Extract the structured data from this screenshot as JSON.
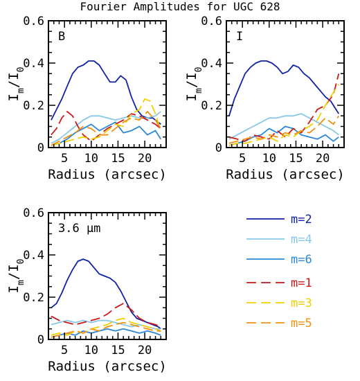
{
  "title": "Fourier Amplitudes for UGC 628",
  "colors": {
    "m2": "#1020a8",
    "m4": "#86c8e8",
    "m6": "#2a88d8",
    "m1": "#cc1818",
    "m3": "#f0d000",
    "m5": "#f09010"
  },
  "legend": [
    {
      "key": "m2",
      "label": "m=2",
      "dashed": false
    },
    {
      "key": "m4",
      "label": "m=4",
      "dashed": false
    },
    {
      "key": "m6",
      "label": "m=6",
      "dashed": false
    },
    {
      "key": "m1",
      "label": "m=1",
      "dashed": true
    },
    {
      "key": "m3",
      "label": "m=3",
      "dashed": true
    },
    {
      "key": "m5",
      "label": "m=5",
      "dashed": true
    }
  ],
  "chart_data": [
    {
      "type": "line",
      "panel_label": "B",
      "xlabel": "Radius (arcsec)",
      "ylabel": "I_m/I_0",
      "xlim": [
        2,
        24
      ],
      "ylim": [
        0,
        0.6
      ],
      "xticks": [
        5,
        10,
        15,
        20
      ],
      "yticks": [
        0,
        0.2,
        0.4,
        0.6
      ],
      "series": [
        {
          "name": "m=2",
          "x": [
            2.5,
            3.5,
            4.5,
            5.5,
            6.5,
            7.5,
            8.5,
            9.5,
            10.5,
            11.5,
            12.5,
            13.5,
            14.5,
            15.5,
            16.5,
            17.5,
            18.5,
            19.5,
            20.5,
            21.5,
            22.5,
            23.0
          ],
          "y": [
            0.13,
            0.18,
            0.23,
            0.29,
            0.35,
            0.38,
            0.39,
            0.41,
            0.41,
            0.39,
            0.35,
            0.31,
            0.31,
            0.34,
            0.32,
            0.24,
            0.18,
            0.15,
            0.14,
            0.14,
            0.12,
            0.11
          ]
        },
        {
          "name": "m=4",
          "x": [
            2.5,
            4,
            5.5,
            7,
            8.5,
            10,
            11.5,
            13,
            14.5,
            16,
            17.5,
            19,
            20.5,
            22,
            23
          ],
          "y": [
            0.02,
            0.04,
            0.07,
            0.1,
            0.13,
            0.15,
            0.15,
            0.14,
            0.13,
            0.14,
            0.15,
            0.14,
            0.14,
            0.15,
            0.17
          ]
        },
        {
          "name": "m=6",
          "x": [
            2.5,
            4,
            5.5,
            7,
            8.5,
            10,
            11.5,
            13,
            14.5,
            16,
            17.5,
            19,
            20.5,
            22,
            23
          ],
          "y": [
            0.01,
            0.02,
            0.04,
            0.07,
            0.09,
            0.11,
            0.08,
            0.1,
            0.12,
            0.07,
            0.08,
            0.1,
            0.06,
            0.08,
            0.04
          ]
        },
        {
          "name": "m=1",
          "x": [
            2.5,
            3.5,
            4.5,
            5.5,
            6.5,
            7.5,
            8.5,
            10,
            11.5,
            13,
            14.5,
            16,
            17.5,
            19,
            20.5,
            22,
            23
          ],
          "y": [
            0.06,
            0.09,
            0.14,
            0.17,
            0.15,
            0.1,
            0.06,
            0.03,
            0.06,
            0.09,
            0.11,
            0.13,
            0.16,
            0.15,
            0.13,
            0.11,
            0.09
          ]
        },
        {
          "name": "m=3",
          "x": [
            2.5,
            4,
            5.5,
            7,
            8.5,
            10,
            11.5,
            13,
            14.5,
            16,
            17.5,
            19,
            20,
            21,
            22,
            23
          ],
          "y": [
            0.01,
            0.02,
            0.03,
            0.04,
            0.05,
            0.04,
            0.05,
            0.08,
            0.11,
            0.1,
            0.16,
            0.18,
            0.23,
            0.22,
            0.16,
            0.08
          ]
        },
        {
          "name": "m=5",
          "x": [
            2.5,
            4,
            5.5,
            7,
            8.5,
            10,
            11.5,
            13,
            14.5,
            16,
            17.5,
            19,
            20.5,
            22,
            23
          ],
          "y": [
            0.01,
            0.03,
            0.05,
            0.07,
            0.1,
            0.09,
            0.06,
            0.06,
            0.09,
            0.12,
            0.14,
            0.13,
            0.17,
            0.13,
            0.09
          ]
        }
      ]
    },
    {
      "type": "line",
      "panel_label": "I",
      "xlabel": "Radius (arcsec)",
      "ylabel": "I_m/I_0",
      "xlim": [
        2,
        24
      ],
      "ylim": [
        0,
        0.6
      ],
      "xticks": [
        5,
        10,
        15,
        20
      ],
      "yticks": [
        0,
        0.2,
        0.4,
        0.6
      ],
      "series": [
        {
          "name": "m=2",
          "x": [
            2.5,
            3.5,
            4.5,
            5.5,
            6.5,
            7.5,
            8.5,
            9.5,
            10.5,
            11.5,
            12.5,
            13.5,
            14.5,
            15.5,
            16.5,
            17.5,
            18.5,
            19.5,
            20.5,
            21.5,
            22.5,
            23.0
          ],
          "y": [
            0.15,
            0.23,
            0.29,
            0.35,
            0.38,
            0.4,
            0.41,
            0.41,
            0.4,
            0.38,
            0.35,
            0.36,
            0.39,
            0.38,
            0.35,
            0.33,
            0.3,
            0.27,
            0.24,
            0.22,
            0.18,
            0.16
          ]
        },
        {
          "name": "m=4",
          "x": [
            2.5,
            4,
            5.5,
            7,
            8.5,
            10,
            11.5,
            13,
            14.5,
            16,
            17.5,
            19,
            20.5,
            22,
            23
          ],
          "y": [
            0.04,
            0.06,
            0.08,
            0.1,
            0.12,
            0.14,
            0.14,
            0.15,
            0.15,
            0.16,
            0.14,
            0.12,
            0.1,
            0.08,
            0.06
          ]
        },
        {
          "name": "m=6",
          "x": [
            2.5,
            4,
            5.5,
            7,
            8.5,
            10,
            11.5,
            13,
            14.5,
            16,
            17.5,
            19,
            20.5,
            22,
            23
          ],
          "y": [
            0.01,
            0.02,
            0.03,
            0.05,
            0.06,
            0.09,
            0.07,
            0.1,
            0.09,
            0.06,
            0.05,
            0.04,
            0.06,
            0.03,
            0.05
          ]
        },
        {
          "name": "m=1",
          "x": [
            2.5,
            4,
            5.5,
            7,
            8.5,
            10,
            11.5,
            13,
            14.5,
            16,
            17.5,
            19,
            20.5,
            22,
            23
          ],
          "y": [
            0.05,
            0.04,
            0.03,
            0.06,
            0.05,
            0.04,
            0.08,
            0.05,
            0.09,
            0.07,
            0.12,
            0.18,
            0.2,
            0.25,
            0.35
          ]
        },
        {
          "name": "m=3",
          "x": [
            2.5,
            4,
            5.5,
            7,
            8.5,
            10,
            11.5,
            13,
            14.5,
            16,
            17.5,
            19,
            20.5,
            22,
            23
          ],
          "y": [
            0.01,
            0.02,
            0.02,
            0.03,
            0.04,
            0.05,
            0.03,
            0.06,
            0.05,
            0.08,
            0.1,
            0.13,
            0.2,
            0.26,
            0.3
          ]
        },
        {
          "name": "m=5",
          "x": [
            2.5,
            4,
            5.5,
            7,
            8.5,
            10,
            11.5,
            13,
            14.5,
            16,
            17.5,
            19,
            20.5,
            22,
            23
          ],
          "y": [
            0.02,
            0.03,
            0.04,
            0.05,
            0.04,
            0.06,
            0.05,
            0.07,
            0.06,
            0.08,
            0.07,
            0.1,
            0.14,
            0.11,
            0.15
          ]
        }
      ]
    },
    {
      "type": "line",
      "panel_label": "3.6 μm",
      "xlabel": "Radius (arcsec)",
      "ylabel": "I_m/I_0",
      "xlim": [
        2,
        24
      ],
      "ylim": [
        0,
        0.6
      ],
      "xticks": [
        5,
        10,
        15,
        20
      ],
      "yticks": [
        0,
        0.2,
        0.4,
        0.6
      ],
      "series": [
        {
          "name": "m=2",
          "x": [
            2.5,
            3.5,
            4.5,
            5.5,
            6.5,
            7.5,
            8.5,
            9.5,
            10.5,
            11.5,
            12.5,
            13.5,
            14.5,
            15.5,
            16.5,
            17.5,
            18.5,
            19.5,
            20.5,
            21.5,
            22.5,
            23.0
          ],
          "y": [
            0.15,
            0.17,
            0.22,
            0.28,
            0.33,
            0.37,
            0.38,
            0.37,
            0.34,
            0.31,
            0.3,
            0.29,
            0.27,
            0.23,
            0.18,
            0.13,
            0.1,
            0.09,
            0.08,
            0.07,
            0.06,
            0.05
          ]
        },
        {
          "name": "m=4",
          "x": [
            2.5,
            4,
            5.5,
            7,
            8.5,
            10,
            11.5,
            13,
            14.5,
            16,
            17.5,
            19,
            20.5,
            22,
            23
          ],
          "y": [
            0.07,
            0.08,
            0.09,
            0.08,
            0.09,
            0.08,
            0.09,
            0.09,
            0.08,
            0.07,
            0.06,
            0.07,
            0.06,
            0.05,
            0.05
          ]
        },
        {
          "name": "m=6",
          "x": [
            2.5,
            4,
            5.5,
            7,
            8.5,
            10,
            11.5,
            13,
            14.5,
            16,
            17.5,
            19,
            20.5,
            22,
            23
          ],
          "y": [
            0.01,
            0.02,
            0.03,
            0.02,
            0.04,
            0.03,
            0.04,
            0.05,
            0.04,
            0.05,
            0.04,
            0.03,
            0.04,
            0.03,
            0.02
          ]
        },
        {
          "name": "m=1",
          "x": [
            2.5,
            4,
            5.5,
            7,
            8.5,
            10,
            11.5,
            13,
            14.5,
            16,
            17.5,
            19,
            20.5,
            22,
            23
          ],
          "y": [
            0.11,
            0.09,
            0.08,
            0.07,
            0.08,
            0.09,
            0.1,
            0.12,
            0.15,
            0.17,
            0.14,
            0.1,
            0.08,
            0.07,
            0.06
          ]
        },
        {
          "name": "m=3",
          "x": [
            2.5,
            4,
            5.5,
            7,
            8.5,
            10,
            11.5,
            13,
            14.5,
            16,
            17.5,
            19,
            20.5,
            22,
            23
          ],
          "y": [
            0.02,
            0.03,
            0.02,
            0.04,
            0.03,
            0.05,
            0.06,
            0.07,
            0.09,
            0.1,
            0.08,
            0.07,
            0.06,
            0.05,
            0.04
          ]
        },
        {
          "name": "m=5",
          "x": [
            2.5,
            4,
            5.5,
            7,
            8.5,
            10,
            11.5,
            13,
            14.5,
            16,
            17.5,
            19,
            20.5,
            22,
            23
          ],
          "y": [
            0.01,
            0.02,
            0.03,
            0.04,
            0.03,
            0.05,
            0.04,
            0.06,
            0.07,
            0.08,
            0.07,
            0.06,
            0.05,
            0.04,
            0.04
          ]
        }
      ]
    }
  ]
}
